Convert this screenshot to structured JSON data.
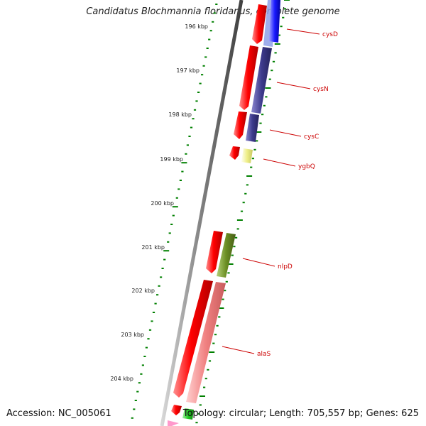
{
  "title": "Candidatus Blochmannia floridanus, complete genome",
  "footer": {
    "accession": "Accession: NC_005061",
    "stats": "Topology: circular; Length: 705,557 bp; Genes: 625"
  },
  "scale_ticks": [
    "196 kbp",
    "197 kbp",
    "198 kbp",
    "199 kbp",
    "200 kbp",
    "201 kbp",
    "202 kbp",
    "203 kbp",
    "204 kbp"
  ],
  "genes": [
    {
      "name": "cysD",
      "color": "#1a1aff"
    },
    {
      "name": "cysN",
      "color": "#3d3a8c"
    },
    {
      "name": "cysC",
      "color": "#3d3a8c"
    },
    {
      "name": "ygbQ",
      "color": "#eeee88"
    },
    {
      "name": "nlpD",
      "color": "#6b8e23"
    },
    {
      "name": "alaS",
      "color": "#f08080"
    }
  ],
  "colors": {
    "cds_forward": "#ff0000",
    "backbone": "#808080",
    "gc_ticks": "#008000",
    "label": "#cc0000"
  }
}
